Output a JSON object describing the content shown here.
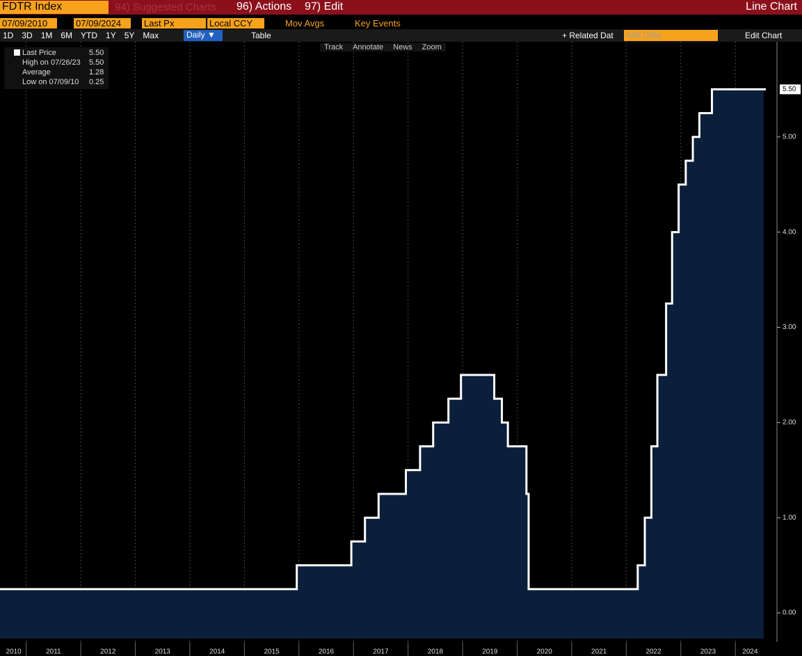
{
  "toolbar": {
    "security": "FDTR Index",
    "suggested": "94) Suggested Charts",
    "actions": "96) Actions",
    "edit": "97) Edit",
    "chart_type": "Line Chart"
  },
  "controls": {
    "start_date": "07/09/2010",
    "end_date": "07/09/2024",
    "field": "Last Px",
    "currency": "Local CCY",
    "mov_avgs": "Mov Avgs",
    "key_events": "Key Events"
  },
  "ranges": [
    "1D",
    "3D",
    "1M",
    "6M",
    "YTD",
    "1Y",
    "5Y",
    "Max"
  ],
  "frequency": "Daily ▼",
  "table": "Table",
  "related": "Related Dat",
  "add_data": "Add Data",
  "edit_chart": "Edit Chart",
  "tools": [
    "Track",
    "Annotate",
    "News",
    "Zoom"
  ],
  "chart_data": {
    "type": "line",
    "step": true,
    "color": "#ffffff",
    "area_color": "#0b1f3b",
    "legend": [
      {
        "label": "Last Price",
        "value": "5.50"
      },
      {
        "label": "High on 07/26/23",
        "value": "5.50"
      },
      {
        "label": "Average",
        "value": "1.28"
      },
      {
        "label": "Low on 07/09/10",
        "value": "0.25"
      }
    ],
    "x": [
      2010.52,
      2015.96,
      2016.96,
      2017.21,
      2017.46,
      2017.96,
      2018.22,
      2018.46,
      2018.74,
      2018.97,
      2019.58,
      2019.72,
      2019.83,
      2020.17,
      2020.21,
      2022.21,
      2022.34,
      2022.46,
      2022.57,
      2022.73,
      2022.84,
      2022.96,
      2023.09,
      2023.22,
      2023.34,
      2023.57,
      2024.52
    ],
    "series": [
      {
        "name": "Last Price",
        "values": [
          0.25,
          0.5,
          0.75,
          1.0,
          1.25,
          1.5,
          1.75,
          2.0,
          2.25,
          2.5,
          2.25,
          2.0,
          1.75,
          1.25,
          0.25,
          0.5,
          1.0,
          1.75,
          2.5,
          3.25,
          4.0,
          4.5,
          4.75,
          5.0,
          5.25,
          5.5,
          5.5
        ]
      }
    ],
    "xlim": [
      2010.52,
      2024.52
    ],
    "xticks": [
      {
        "value": 2010.77,
        "label": "2010"
      },
      {
        "value": 2011.5,
        "label": "2011"
      },
      {
        "value": 2012.5,
        "label": "2012"
      },
      {
        "value": 2013.5,
        "label": "2013"
      },
      {
        "value": 2014.5,
        "label": "2014"
      },
      {
        "value": 2015.5,
        "label": "2015"
      },
      {
        "value": 2016.5,
        "label": "2016"
      },
      {
        "value": 2017.5,
        "label": "2017"
      },
      {
        "value": 2018.5,
        "label": "2018"
      },
      {
        "value": 2019.5,
        "label": "2019"
      },
      {
        "value": 2020.5,
        "label": "2020"
      },
      {
        "value": 2021.5,
        "label": "2021"
      },
      {
        "value": 2022.5,
        "label": "2022"
      },
      {
        "value": 2023.5,
        "label": "2023"
      },
      {
        "value": 2024.27,
        "label": "2024"
      }
    ],
    "xgrid": [
      2011,
      2012,
      2013,
      2014,
      2015,
      2016,
      2017,
      2018,
      2019,
      2020,
      2021,
      2022,
      2023,
      2024
    ],
    "ylim": [
      -0.27,
      6.0
    ],
    "yticks": [
      {
        "value": 0,
        "label": "0.00"
      },
      {
        "value": 1,
        "label": "1.00"
      },
      {
        "value": 2,
        "label": "2.00"
      },
      {
        "value": 3,
        "label": "3.00"
      },
      {
        "value": 4,
        "label": "4.00"
      },
      {
        "value": 5,
        "label": "5.00"
      }
    ],
    "last_tag": {
      "value": 5.5,
      "label": "5.50"
    }
  }
}
